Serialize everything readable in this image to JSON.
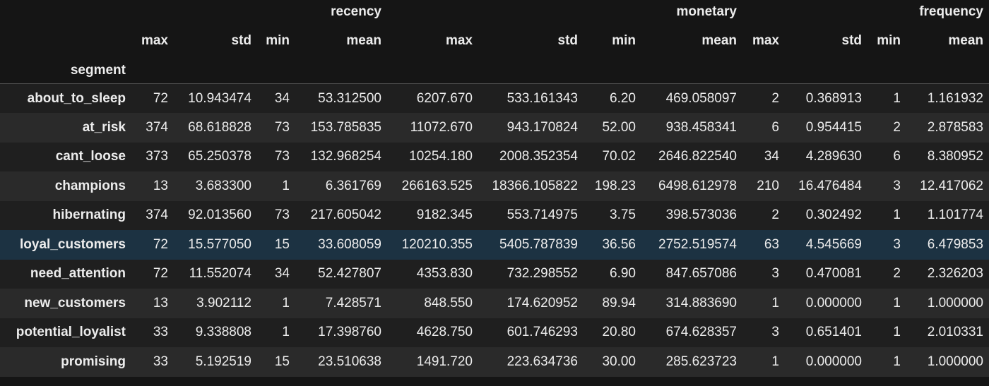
{
  "table": {
    "index_name": "segment",
    "top_headers": {
      "recency": "recency",
      "monetary": "monetary",
      "frequency": "frequency"
    },
    "sub_headers": [
      "max",
      "std",
      "min",
      "mean",
      "max",
      "std",
      "min",
      "mean",
      "max",
      "std",
      "min",
      "mean"
    ],
    "highlighted_row": 5,
    "rows": [
      {
        "segment": "about_to_sleep",
        "values": [
          "72",
          "10.943474",
          "34",
          "53.312500",
          "6207.670",
          "533.161343",
          "6.20",
          "469.058097",
          "2",
          "0.368913",
          "1",
          "1.161932"
        ]
      },
      {
        "segment": "at_risk",
        "values": [
          "374",
          "68.618828",
          "73",
          "153.785835",
          "11072.670",
          "943.170824",
          "52.00",
          "938.458341",
          "6",
          "0.954415",
          "2",
          "2.878583"
        ]
      },
      {
        "segment": "cant_loose",
        "values": [
          "373",
          "65.250378",
          "73",
          "132.968254",
          "10254.180",
          "2008.352354",
          "70.02",
          "2646.822540",
          "34",
          "4.289630",
          "6",
          "8.380952"
        ]
      },
      {
        "segment": "champions",
        "values": [
          "13",
          "3.683300",
          "1",
          "6.361769",
          "266163.525",
          "18366.105822",
          "198.23",
          "6498.612978",
          "210",
          "16.476484",
          "3",
          "12.417062"
        ]
      },
      {
        "segment": "hibernating",
        "values": [
          "374",
          "92.013560",
          "73",
          "217.605042",
          "9182.345",
          "553.714975",
          "3.75",
          "398.573036",
          "2",
          "0.302492",
          "1",
          "1.101774"
        ]
      },
      {
        "segment": "loyal_customers",
        "values": [
          "72",
          "15.577050",
          "15",
          "33.608059",
          "120210.355",
          "5405.787839",
          "36.56",
          "2752.519574",
          "63",
          "4.545669",
          "3",
          "6.479853"
        ]
      },
      {
        "segment": "need_attention",
        "values": [
          "72",
          "11.552074",
          "34",
          "52.427807",
          "4353.830",
          "732.298552",
          "6.90",
          "847.657086",
          "3",
          "0.470081",
          "2",
          "2.326203"
        ]
      },
      {
        "segment": "new_customers",
        "values": [
          "13",
          "3.902112",
          "1",
          "7.428571",
          "848.550",
          "174.620952",
          "89.94",
          "314.883690",
          "1",
          "0.000000",
          "1",
          "1.000000"
        ]
      },
      {
        "segment": "potential_loyalist",
        "values": [
          "33",
          "9.338808",
          "1",
          "17.398760",
          "4628.750",
          "601.746293",
          "20.80",
          "674.628357",
          "3",
          "0.651401",
          "1",
          "2.010331"
        ]
      },
      {
        "segment": "promising",
        "values": [
          "33",
          "5.192519",
          "15",
          "23.510638",
          "1491.720",
          "223.634736",
          "30.00",
          "285.623723",
          "1",
          "0.000000",
          "1",
          "1.000000"
        ]
      }
    ]
  }
}
